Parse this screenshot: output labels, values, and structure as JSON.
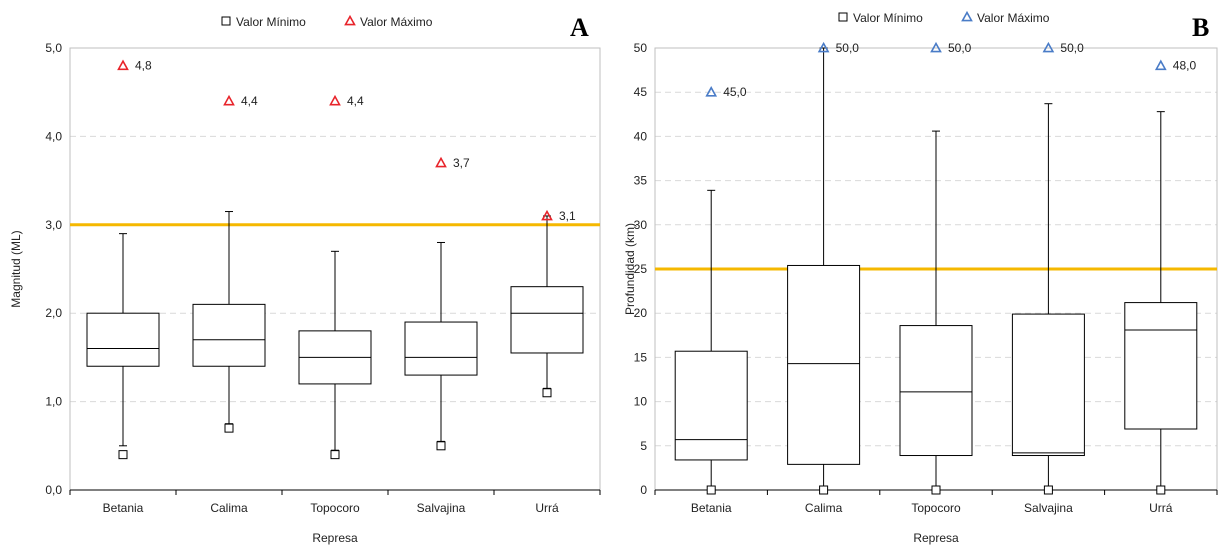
{
  "chart_data": [
    {
      "type": "boxplot",
      "panel_label": "A",
      "xlabel": "Represa",
      "ylabel": "Magnitud (ML)",
      "ylim": [
        0,
        5
      ],
      "yticks": [
        "0,0",
        "1,0",
        "2,0",
        "3,0",
        "4,0",
        "5,0"
      ],
      "ytick_values": [
        0,
        1,
        2,
        3,
        4,
        5
      ],
      "categories": [
        "Betania",
        "Calima",
        "Topocoro",
        "Salvajina",
        "Urrá"
      ],
      "boxes": [
        {
          "q1": 1.4,
          "median": 1.6,
          "q3": 2.0,
          "whisker_low": 0.5,
          "whisker_high": 2.9
        },
        {
          "q1": 1.4,
          "median": 1.7,
          "q3": 2.1,
          "whisker_low": 0.75,
          "whisker_high": 3.15
        },
        {
          "q1": 1.2,
          "median": 1.5,
          "q3": 1.8,
          "whisker_low": 0.45,
          "whisker_high": 2.7
        },
        {
          "q1": 1.3,
          "median": 1.5,
          "q3": 1.9,
          "whisker_low": 0.55,
          "whisker_high": 2.8
        },
        {
          "q1": 1.55,
          "median": 2.0,
          "q3": 2.3,
          "whisker_low": 1.15,
          "whisker_high": 3.1
        }
      ],
      "min_values": [
        0.4,
        0.7,
        0.4,
        0.5,
        1.1
      ],
      "max_values": [
        4.8,
        4.4,
        4.4,
        3.7,
        3.1
      ],
      "max_labels": [
        "4,8",
        "4,4",
        "4,4",
        "3,7",
        "3,1"
      ],
      "reference_line": 3.0,
      "max_color": "#e8242b",
      "reference_color": "#f5b800",
      "legend": {
        "min_label": "Valor Mínimo",
        "max_label": "Valor Máximo",
        "position": "top-center"
      },
      "grid": true
    },
    {
      "type": "boxplot",
      "panel_label": "B",
      "xlabel": "Represa",
      "ylabel": "Profundidad (km)",
      "ylim": [
        0,
        50
      ],
      "yticks": [
        "0",
        "5",
        "10",
        "15",
        "20",
        "25",
        "30",
        "35",
        "40",
        "45",
        "50"
      ],
      "ytick_values": [
        0,
        5,
        10,
        15,
        20,
        25,
        30,
        35,
        40,
        45,
        50
      ],
      "categories": [
        "Betania",
        "Calima",
        "Topocoro",
        "Salvajina",
        "Urrá"
      ],
      "boxes": [
        {
          "q1": 3.4,
          "median": 5.7,
          "q3": 15.7,
          "whisker_low": 0,
          "whisker_high": 33.9
        },
        {
          "q1": 2.9,
          "median": 14.3,
          "q3": 25.4,
          "whisker_low": 0,
          "whisker_high": 50.0
        },
        {
          "q1": 3.9,
          "median": 11.1,
          "q3": 18.6,
          "whisker_low": 0,
          "whisker_high": 40.6
        },
        {
          "q1": 3.9,
          "median": 4.2,
          "q3": 19.9,
          "whisker_low": 0,
          "whisker_high": 43.7
        },
        {
          "q1": 6.9,
          "median": 18.1,
          "q3": 21.2,
          "whisker_low": 0,
          "whisker_high": 42.8
        }
      ],
      "min_values": [
        0,
        0,
        0,
        0,
        0
      ],
      "max_values": [
        45.0,
        50.0,
        50.0,
        50.0,
        48.0
      ],
      "max_labels": [
        "45,0",
        "50,0",
        "50,0",
        "50,0",
        "48,0"
      ],
      "reference_line": 25,
      "max_color": "#4a7cc7",
      "reference_color": "#f5b800",
      "legend": {
        "min_label": "Valor Mínimo",
        "max_label": "Valor Máximo",
        "position": "top-center"
      },
      "grid": true
    }
  ]
}
